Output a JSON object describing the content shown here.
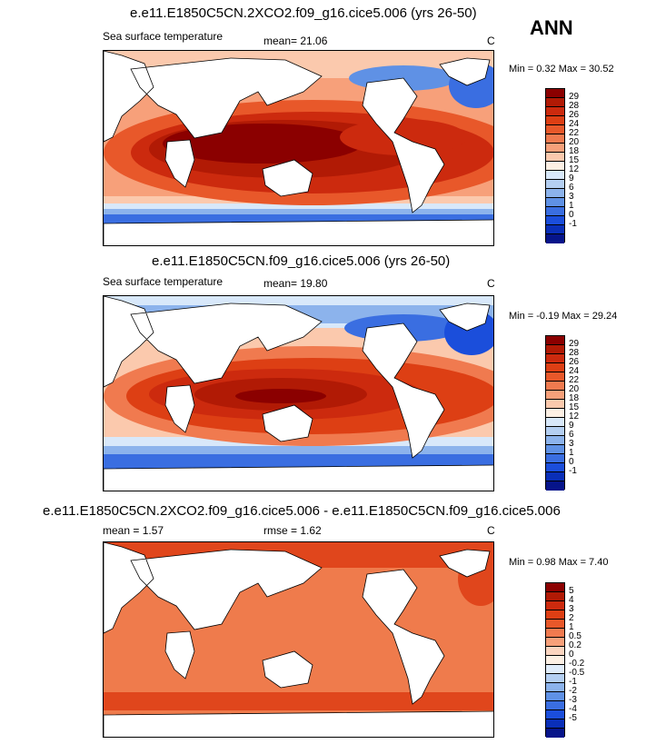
{
  "season_label": "ANN",
  "panels": [
    {
      "title": "e.e11.E1850C5CN.2XCO2.f09_g16.cice5.006 (yrs 26-50)",
      "left_label": "Sea surface temperature",
      "stat_text": "mean=  21.06",
      "units": "C",
      "minmax": "Min =   0.32 Max =  30.52",
      "colorbar": {
        "labels": [
          "29",
          "28",
          "26",
          "24",
          "22",
          "20",
          "18",
          "15",
          "12",
          "9",
          "6",
          "3",
          "1",
          "0",
          "-1"
        ],
        "colors": [
          "#8b0000",
          "#b11a05",
          "#cc2a0e",
          "#dd3f14",
          "#e8582a",
          "#f07a4f",
          "#f7a07a",
          "#fbc9ad",
          "#fdf0e4",
          "#d8e8fa",
          "#b4cff2",
          "#8cb3ec",
          "#5f91e5",
          "#3a6ee1",
          "#1b4edb",
          "#0a2fb8",
          "#06148a"
        ]
      }
    },
    {
      "title": "e.e11.E1850C5CN.f09_g16.cice5.006 (yrs 26-50)",
      "left_label": "Sea surface temperature",
      "stat_text": "mean=  19.80",
      "units": "C",
      "minmax": "Min =  -0.19 Max =  29.24",
      "colorbar": {
        "labels": [
          "29",
          "28",
          "26",
          "24",
          "22",
          "20",
          "18",
          "15",
          "12",
          "9",
          "6",
          "3",
          "1",
          "0",
          "-1"
        ],
        "colors": [
          "#8b0000",
          "#b11a05",
          "#cc2a0e",
          "#dd3f14",
          "#e8582a",
          "#f07a4f",
          "#f7a07a",
          "#fbc9ad",
          "#fdf0e4",
          "#d8e8fa",
          "#b4cff2",
          "#8cb3ec",
          "#5f91e5",
          "#3a6ee1",
          "#1b4edb",
          "#0a2fb8",
          "#06148a"
        ]
      }
    },
    {
      "title": "e.e11.E1850C5CN.2XCO2.f09_g16.cice5.006 - e.e11.E1850C5CN.f09_g16.cice5.006",
      "left_label": "mean =   1.57",
      "stat_text": "rmse =   1.62",
      "units": "C",
      "minmax": "Min =   0.98 Max =   7.40",
      "colorbar": {
        "labels": [
          "5",
          "4",
          "3",
          "2",
          "1",
          "0.5",
          "0.2",
          "0",
          "-0.2",
          "-0.5",
          "-1",
          "-2",
          "-3",
          "-4",
          "-5"
        ],
        "colors": [
          "#8b0000",
          "#b11a05",
          "#cc2a0e",
          "#dd3f14",
          "#e8582a",
          "#f07a4f",
          "#f7a07a",
          "#fbd5c0",
          "#fdf0e4",
          "#e0ecfa",
          "#b4cff2",
          "#8cb3ec",
          "#5f91e5",
          "#3a6ee1",
          "#1b4edb",
          "#0a2fb8",
          "#06148a"
        ]
      }
    }
  ],
  "colors": {
    "land": "#ffffff",
    "coast": "#000000",
    "panel3_ocean": "#ef7b4c",
    "panel3_warm": "#e0461c"
  }
}
